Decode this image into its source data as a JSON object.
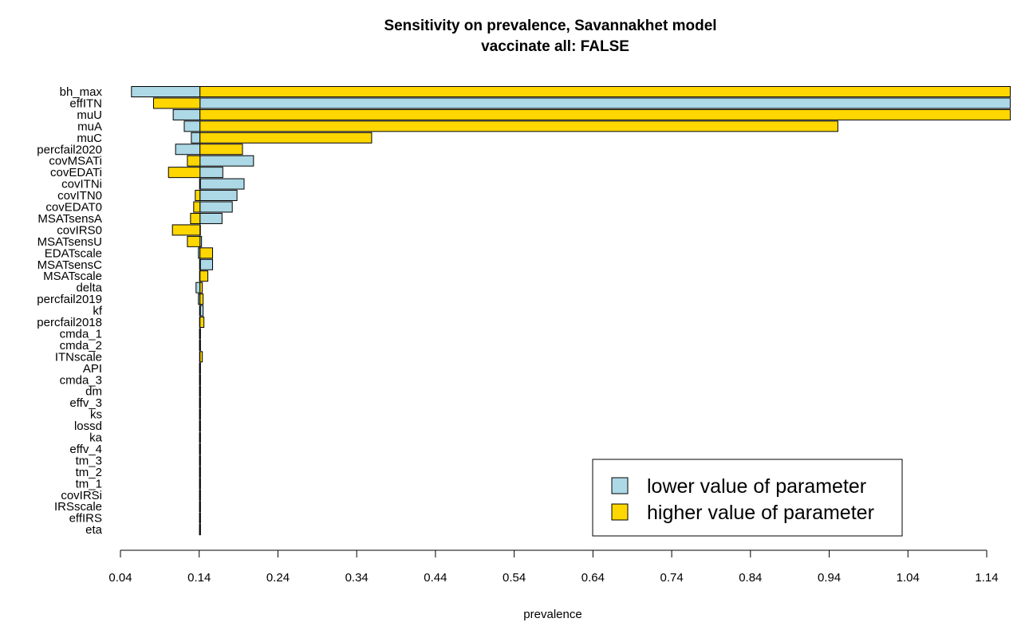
{
  "chart_data": {
    "type": "bar",
    "orientation": "horizontal",
    "title": "Sensitivity on prevalence, Savannakhet model",
    "subtitle": "vaccinate all: FALSE",
    "xlabel": "prevalence",
    "ylabel": "",
    "xlim": [
      0.04,
      1.14
    ],
    "xticks": [
      "0.04",
      "0.14",
      "0.24",
      "0.34",
      "0.44",
      "0.54",
      "0.64",
      "0.74",
      "0.84",
      "0.94",
      "1.04",
      "1.14"
    ],
    "baseline": 0.141,
    "categories": [
      "bh_max",
      "effITN",
      "muU",
      "muA",
      "muC",
      "percfail2020",
      "covMSATi",
      "covEDATi",
      "covITNi",
      "covITN0",
      "covEDAT0",
      "MSATsensA",
      "covIRS0",
      "MSATsensU",
      "EDATscale",
      "MSATsensC",
      "MSATscale",
      "delta",
      "percfail2019",
      "kf",
      "percfail2018",
      "cmda_1",
      "cmda_2",
      "ITNscale",
      "API",
      "cmda_3",
      "dm",
      "effv_3",
      "ks",
      "lossd",
      "ka",
      "effv_4",
      "tm_3",
      "tm_2",
      "tm_1",
      "covIRSi",
      "IRSscale",
      "effIRS",
      "eta"
    ],
    "series": [
      {
        "name": "lower value of parameter",
        "color": "#add8e6",
        "values": [
          0.054,
          1.17,
          0.107,
          0.121,
          0.13,
          0.11,
          0.209,
          0.17,
          0.197,
          0.188,
          0.182,
          0.169,
          0.141,
          0.143,
          0.139,
          0.157,
          0.141,
          0.136,
          0.139,
          0.145,
          0.141,
          0.142,
          0.142,
          0.141,
          0.142,
          0.142,
          0.142,
          0.142,
          0.14,
          0.142,
          0.141,
          0.141,
          0.141,
          0.141,
          0.141,
          0.141,
          0.141,
          0.141,
          0.141
        ]
      },
      {
        "name": "higher value of parameter",
        "color": "#ffd700",
        "values": [
          1.17,
          0.082,
          1.17,
          0.951,
          0.359,
          0.195,
          0.125,
          0.101,
          0.141,
          0.135,
          0.133,
          0.129,
          0.106,
          0.125,
          0.157,
          0.141,
          0.151,
          0.144,
          0.145,
          0.141,
          0.146,
          0.141,
          0.141,
          0.144,
          0.142,
          0.141,
          0.142,
          0.141,
          0.141,
          0.142,
          0.141,
          0.141,
          0.141,
          0.141,
          0.141,
          0.141,
          0.141,
          0.141,
          0.141
        ]
      }
    ],
    "legend_position": "bottom-right",
    "grid": false
  }
}
